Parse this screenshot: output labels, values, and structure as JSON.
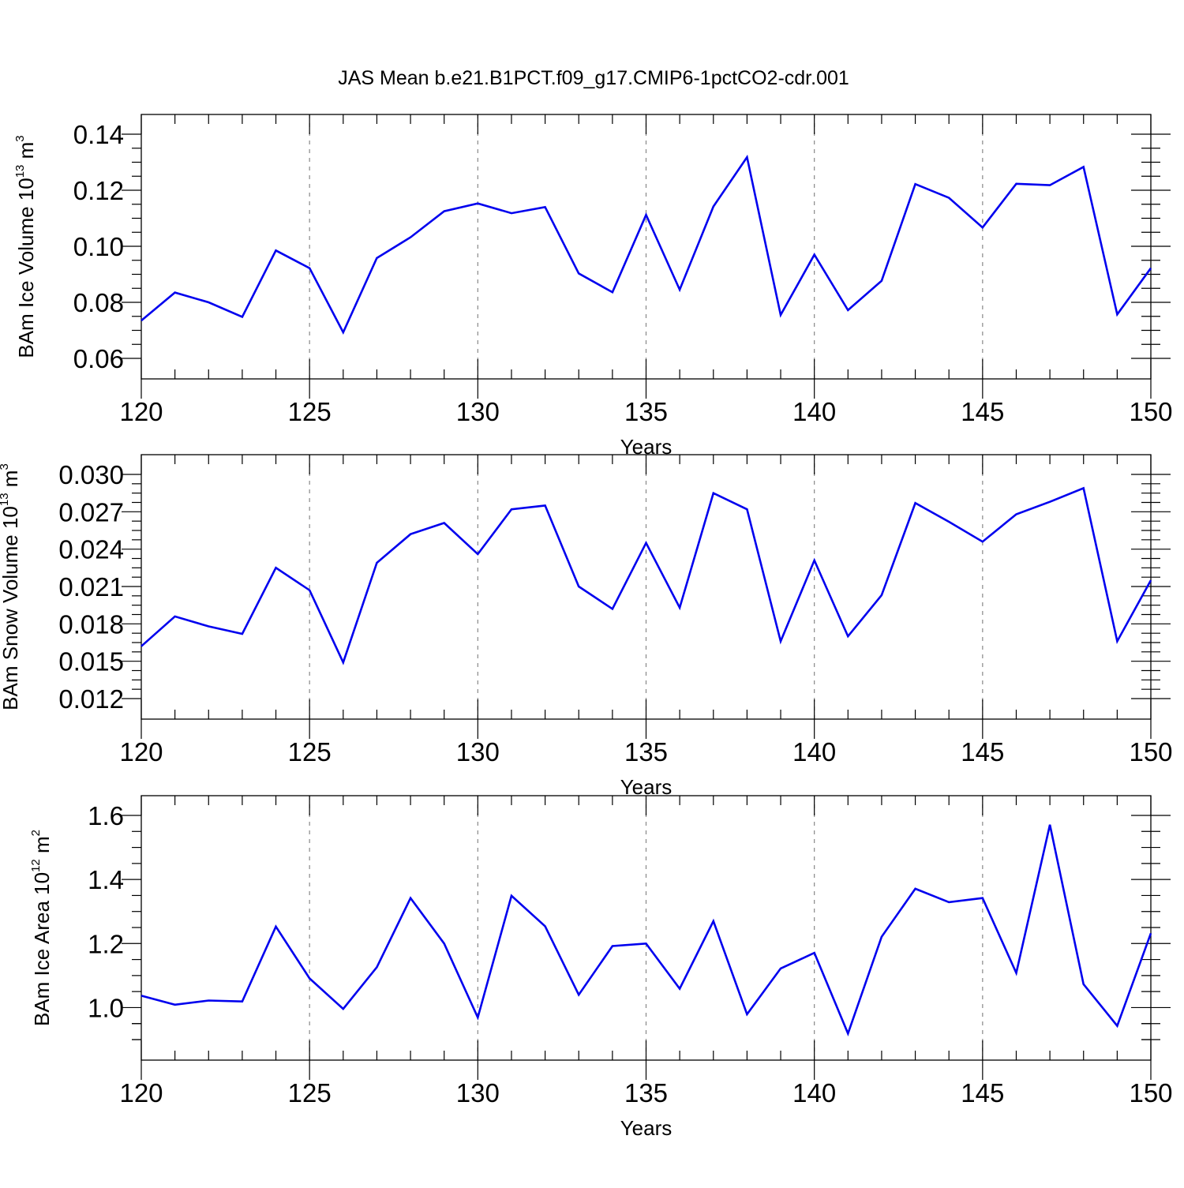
{
  "figure": {
    "title": "JAS Mean b.e21.B1PCT.f09_g17.CMIP6-1pctCO2-cdr.001"
  },
  "colors": {
    "series": "#0000ee",
    "frame": "#000000",
    "grid": "#888888"
  },
  "chart_data": [
    {
      "type": "line",
      "name": "ice-volume",
      "ylabel_main": "BAm Ice Volume 10",
      "ylabel_exp": "13",
      "ylabel_unit": " m",
      "ylabel_unit_exp": "3",
      "xlabel": "Years",
      "xlim": [
        120,
        150
      ],
      "ylim": [
        0.06,
        0.14
      ],
      "x_ticks": [
        120,
        125,
        130,
        135,
        140,
        145,
        150
      ],
      "x_tick_labels": [
        "120",
        "125",
        "130",
        "135",
        "140",
        "145",
        "150"
      ],
      "y_ticks": [
        0.06,
        0.08,
        0.1,
        0.12,
        0.14
      ],
      "y_tick_labels": [
        "0.06",
        "0.08",
        "0.10",
        "0.12",
        "0.14"
      ],
      "grid": "vertical-dashed",
      "x": [
        120,
        121,
        122,
        123,
        124,
        125,
        126,
        127,
        128,
        129,
        130,
        131,
        132,
        133,
        134,
        135,
        136,
        137,
        138,
        139,
        140,
        141,
        142,
        143,
        144,
        145,
        146,
        147,
        148,
        149,
        150
      ],
      "y": [
        0.0735,
        0.0835,
        0.08,
        0.0748,
        0.0985,
        0.0922,
        0.0693,
        0.0958,
        0.1032,
        0.1125,
        0.1153,
        0.1118,
        0.114,
        0.0903,
        0.0836,
        0.1112,
        0.0845,
        0.1142,
        0.1318,
        0.0755,
        0.097,
        0.0772,
        0.0877,
        0.1222,
        0.1173,
        0.1067,
        0.1223,
        0.1218,
        0.1283,
        0.0757,
        0.0922
      ]
    },
    {
      "type": "line",
      "name": "snow-volume",
      "ylabel_main": "BAm Snow Volume 10",
      "ylabel_exp": "13",
      "ylabel_unit": " m",
      "ylabel_unit_exp": "3",
      "xlabel": "Years",
      "xlim": [
        120,
        150
      ],
      "ylim": [
        0.012,
        0.03
      ],
      "x_ticks": [
        120,
        125,
        130,
        135,
        140,
        145,
        150
      ],
      "x_tick_labels": [
        "120",
        "125",
        "130",
        "135",
        "140",
        "145",
        "150"
      ],
      "y_ticks": [
        0.012,
        0.015,
        0.018,
        0.021,
        0.024,
        0.027,
        0.03
      ],
      "y_tick_labels": [
        "0.012",
        "0.015",
        "0.018",
        "0.021",
        "0.024",
        "0.027",
        "0.030"
      ],
      "grid": "vertical-dashed",
      "x": [
        120,
        121,
        122,
        123,
        124,
        125,
        126,
        127,
        128,
        129,
        130,
        131,
        132,
        133,
        134,
        135,
        136,
        137,
        138,
        139,
        140,
        141,
        142,
        143,
        144,
        145,
        146,
        147,
        148,
        149,
        150
      ],
      "y": [
        0.0162,
        0.0186,
        0.0178,
        0.0172,
        0.0225,
        0.0207,
        0.0149,
        0.0229,
        0.0252,
        0.0261,
        0.0236,
        0.0272,
        0.0275,
        0.021,
        0.0192,
        0.0245,
        0.0193,
        0.0285,
        0.0272,
        0.0166,
        0.0231,
        0.017,
        0.0203,
        0.0277,
        0.0262,
        0.0246,
        0.0268,
        0.0278,
        0.0289,
        0.0166,
        0.0215
      ]
    },
    {
      "type": "line",
      "name": "ice-area",
      "ylabel_main": "BAm Ice Area 10",
      "ylabel_exp": "12",
      "ylabel_unit": " m",
      "ylabel_unit_exp": "2",
      "xlabel": "Years",
      "xlim": [
        120,
        150
      ],
      "ylim": [
        0.9,
        1.6
      ],
      "x_ticks": [
        120,
        125,
        130,
        135,
        140,
        145,
        150
      ],
      "x_tick_labels": [
        "120",
        "125",
        "130",
        "135",
        "140",
        "145",
        "150"
      ],
      "y_ticks": [
        1.0,
        1.2,
        1.4,
        1.6
      ],
      "y_tick_labels": [
        "1.0",
        "1.2",
        "1.4",
        "1.6"
      ],
      "grid": "vertical-dashed",
      "x": [
        120,
        121,
        122,
        123,
        124,
        125,
        126,
        127,
        128,
        129,
        130,
        131,
        132,
        133,
        134,
        135,
        136,
        137,
        138,
        139,
        140,
        141,
        142,
        143,
        144,
        145,
        146,
        147,
        148,
        149,
        150
      ],
      "y": [
        1.037,
        1.009,
        1.022,
        1.019,
        1.253,
        1.091,
        0.996,
        1.126,
        1.342,
        1.2,
        0.969,
        1.349,
        1.254,
        1.04,
        1.192,
        1.2,
        1.059,
        1.27,
        0.979,
        1.122,
        1.171,
        0.919,
        1.221,
        1.371,
        1.329,
        1.342,
        1.108,
        1.571,
        1.073,
        0.943,
        1.232
      ]
    }
  ]
}
